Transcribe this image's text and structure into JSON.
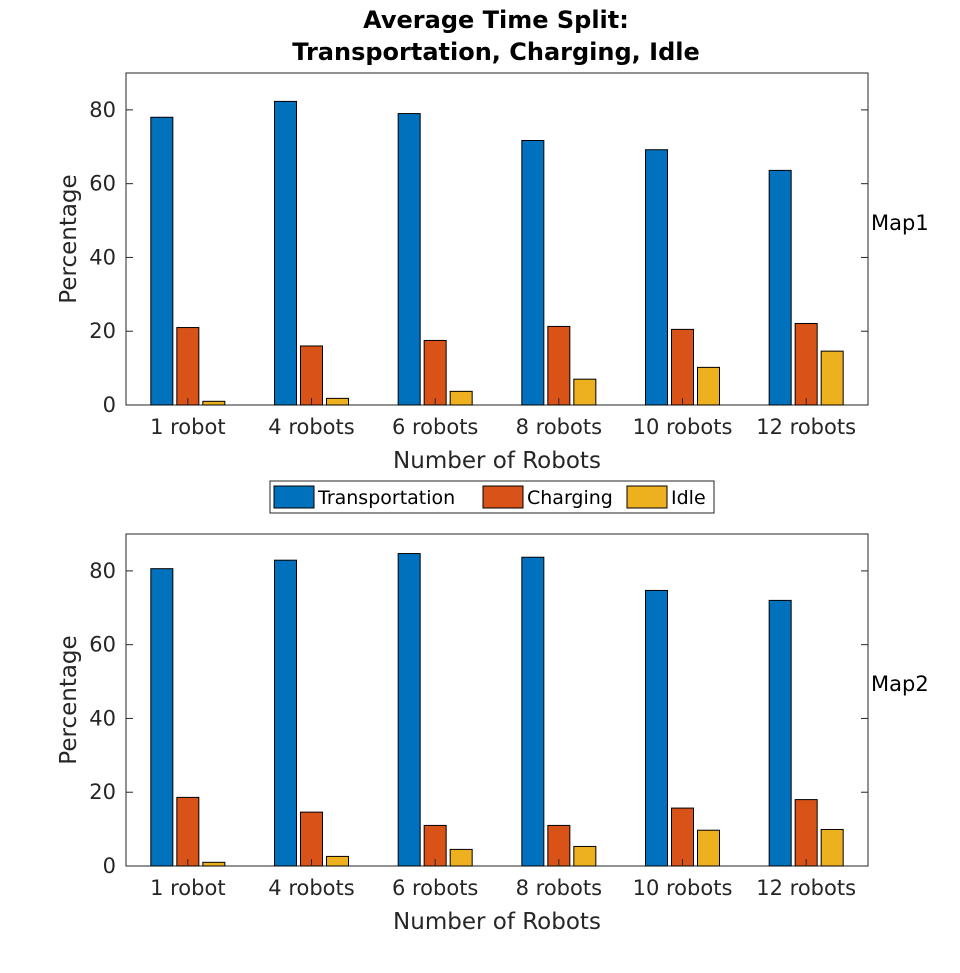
{
  "title_lines": [
    "Average Time Split:",
    "Transportation, Charging, Idle"
  ],
  "legend": [
    "Transportation",
    "Charging",
    "Idle"
  ],
  "colors": {
    "Transportation": "#0072BD",
    "Charging": "#D95319",
    "Idle": "#EDB120"
  },
  "chart_data": [
    {
      "type": "bar",
      "side_label": "Map1",
      "categories": [
        "1 robot",
        "4 robots",
        "6 robots",
        "8 robots",
        "10 robots",
        "12 robots"
      ],
      "series": [
        {
          "name": "Transportation",
          "values": [
            78,
            82.3,
            79,
            71.7,
            69.2,
            63.6
          ]
        },
        {
          "name": "Charging",
          "values": [
            21,
            16,
            17.5,
            21.3,
            20.5,
            22.1
          ]
        },
        {
          "name": "Idle",
          "values": [
            1,
            1.8,
            3.7,
            7,
            10.2,
            14.6
          ]
        }
      ],
      "xlabel": "Number of Robots",
      "ylabel": "Percentage",
      "ylim": [
        0,
        90
      ],
      "yticks": [
        0,
        20,
        40,
        60,
        80
      ],
      "grid": false
    },
    {
      "type": "bar",
      "side_label": "Map2",
      "categories": [
        "1 robot",
        "4 robots",
        "6 robots",
        "8 robots",
        "10 robots",
        "12 robots"
      ],
      "series": [
        {
          "name": "Transportation",
          "values": [
            80.6,
            82.9,
            84.7,
            83.7,
            74.7,
            72
          ]
        },
        {
          "name": "Charging",
          "values": [
            18.6,
            14.6,
            11,
            11,
            15.7,
            18
          ]
        },
        {
          "name": "Idle",
          "values": [
            1,
            2.6,
            4.5,
            5.3,
            9.7,
            9.9
          ]
        }
      ],
      "xlabel": "Number of Robots",
      "ylabel": "Percentage",
      "ylim": [
        0,
        90
      ],
      "yticks": [
        0,
        20,
        40,
        60,
        80
      ],
      "grid": false
    }
  ]
}
